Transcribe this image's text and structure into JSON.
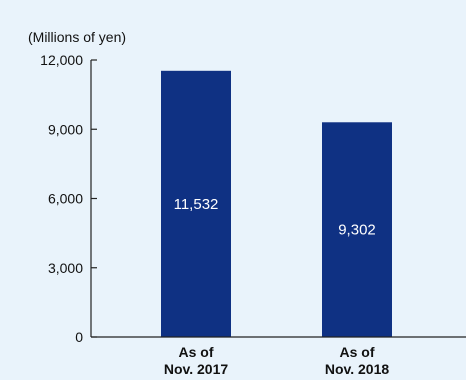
{
  "chart_data": {
    "type": "bar",
    "unit_label": "(Millions of yen)",
    "categories": [
      [
        "As of",
        "Nov. 2017"
      ],
      [
        "As of",
        "Nov. 2018"
      ]
    ],
    "values": [
      11532,
      9302
    ],
    "value_labels": [
      "11,532",
      "9,302"
    ],
    "yticks": [
      0,
      3000,
      6000,
      9000,
      12000
    ],
    "ytick_labels": [
      "0",
      "3,000",
      "6,000",
      "9,000",
      "12,000"
    ],
    "ylim": [
      0,
      12000
    ],
    "grid": false
  },
  "colors": {
    "background": "#e9f3fb",
    "bar": "#0f3183",
    "axis": "#222222",
    "text": "#111111",
    "value_label": "#ffffff"
  }
}
